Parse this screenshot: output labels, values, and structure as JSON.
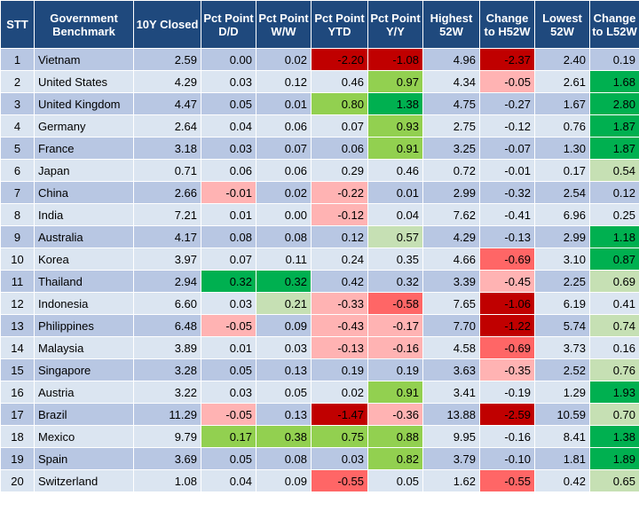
{
  "headers": [
    "STT",
    "Government Benchmark",
    "10Y Closed",
    "Pct Point D/D",
    "Pct Point W/W",
    "Pct Point YTD",
    "Pct Point Y/Y",
    "Highest 52W",
    "Change to H52W",
    "Lowest 52W",
    "Change to L52W"
  ],
  "rows": [
    {
      "stt": "1",
      "name": "Vietnam",
      "closed": "2.59",
      "dd": "0.00",
      "ww": "0.02",
      "ytd": "-2.20",
      "yy": "-1.08",
      "h52": "4.96",
      "ch52": "-2.37",
      "l52": "2.40",
      "cl52": "0.19"
    },
    {
      "stt": "2",
      "name": "United States",
      "closed": "4.29",
      "dd": "0.03",
      "ww": "0.12",
      "ytd": "0.46",
      "yy": "0.97",
      "h52": "4.34",
      "ch52": "-0.05",
      "l52": "2.61",
      "cl52": "1.68"
    },
    {
      "stt": "3",
      "name": "United Kingdom",
      "closed": "4.47",
      "dd": "0.05",
      "ww": "0.01",
      "ytd": "0.80",
      "yy": "1.38",
      "h52": "4.75",
      "ch52": "-0.27",
      "l52": "1.67",
      "cl52": "2.80"
    },
    {
      "stt": "4",
      "name": "Germany",
      "closed": "2.64",
      "dd": "0.04",
      "ww": "0.06",
      "ytd": "0.07",
      "yy": "0.93",
      "h52": "2.75",
      "ch52": "-0.12",
      "l52": "0.76",
      "cl52": "1.87"
    },
    {
      "stt": "5",
      "name": "France",
      "closed": "3.18",
      "dd": "0.03",
      "ww": "0.07",
      "ytd": "0.06",
      "yy": "0.91",
      "h52": "3.25",
      "ch52": "-0.07",
      "l52": "1.30",
      "cl52": "1.87"
    },
    {
      "stt": "6",
      "name": "Japan",
      "closed": "0.71",
      "dd": "0.06",
      "ww": "0.06",
      "ytd": "0.29",
      "yy": "0.46",
      "h52": "0.72",
      "ch52": "-0.01",
      "l52": "0.17",
      "cl52": "0.54"
    },
    {
      "stt": "7",
      "name": "China",
      "closed": "2.66",
      "dd": "-0.01",
      "ww": "0.02",
      "ytd": "-0.22",
      "yy": "0.01",
      "h52": "2.99",
      "ch52": "-0.32",
      "l52": "2.54",
      "cl52": "0.12"
    },
    {
      "stt": "8",
      "name": "India",
      "closed": "7.21",
      "dd": "0.01",
      "ww": "0.00",
      "ytd": "-0.12",
      "yy": "0.04",
      "h52": "7.62",
      "ch52": "-0.41",
      "l52": "6.96",
      "cl52": "0.25"
    },
    {
      "stt": "9",
      "name": "Australia",
      "closed": "4.17",
      "dd": "0.08",
      "ww": "0.08",
      "ytd": "0.12",
      "yy": "0.57",
      "h52": "4.29",
      "ch52": "-0.13",
      "l52": "2.99",
      "cl52": "1.18"
    },
    {
      "stt": "10",
      "name": "Korea",
      "closed": "3.97",
      "dd": "0.07",
      "ww": "0.11",
      "ytd": "0.24",
      "yy": "0.35",
      "h52": "4.66",
      "ch52": "-0.69",
      "l52": "3.10",
      "cl52": "0.87"
    },
    {
      "stt": "11",
      "name": "Thailand",
      "closed": "2.94",
      "dd": "0.32",
      "ww": "0.32",
      "ytd": "0.42",
      "yy": "0.32",
      "h52": "3.39",
      "ch52": "-0.45",
      "l52": "2.25",
      "cl52": "0.69"
    },
    {
      "stt": "12",
      "name": "Indonesia",
      "closed": "6.60",
      "dd": "0.03",
      "ww": "0.21",
      "ytd": "-0.33",
      "yy": "-0.58",
      "h52": "7.65",
      "ch52": "-1.06",
      "l52": "6.19",
      "cl52": "0.41"
    },
    {
      "stt": "13",
      "name": "Philippines",
      "closed": "6.48",
      "dd": "-0.05",
      "ww": "0.09",
      "ytd": "-0.43",
      "yy": "-0.17",
      "h52": "7.70",
      "ch52": "-1.22",
      "l52": "5.74",
      "cl52": "0.74"
    },
    {
      "stt": "14",
      "name": "Malaysia",
      "closed": "3.89",
      "dd": "0.01",
      "ww": "0.03",
      "ytd": "-0.13",
      "yy": "-0.16",
      "h52": "4.58",
      "ch52": "-0.69",
      "l52": "3.73",
      "cl52": "0.16"
    },
    {
      "stt": "15",
      "name": "Singapore",
      "closed": "3.28",
      "dd": "0.05",
      "ww": "0.13",
      "ytd": "0.19",
      "yy": "0.19",
      "h52": "3.63",
      "ch52": "-0.35",
      "l52": "2.52",
      "cl52": "0.76"
    },
    {
      "stt": "16",
      "name": "Austria",
      "closed": "3.22",
      "dd": "0.03",
      "ww": "0.05",
      "ytd": "0.02",
      "yy": "0.91",
      "h52": "3.41",
      "ch52": "-0.19",
      "l52": "1.29",
      "cl52": "1.93"
    },
    {
      "stt": "17",
      "name": "Brazil",
      "closed": "11.29",
      "dd": "-0.05",
      "ww": "0.13",
      "ytd": "-1.47",
      "yy": "-0.36",
      "h52": "13.88",
      "ch52": "-2.59",
      "l52": "10.59",
      "cl52": "0.70"
    },
    {
      "stt": "18",
      "name": "Mexico",
      "closed": "9.79",
      "dd": "0.17",
      "ww": "0.38",
      "ytd": "0.75",
      "yy": "0.88",
      "h52": "9.95",
      "ch52": "-0.16",
      "l52": "8.41",
      "cl52": "1.38"
    },
    {
      "stt": "19",
      "name": "Spain",
      "closed": "3.69",
      "dd": "0.05",
      "ww": "0.08",
      "ytd": "0.03",
      "yy": "0.82",
      "h52": "3.79",
      "ch52": "-0.10",
      "l52": "1.81",
      "cl52": "1.89"
    },
    {
      "stt": "20",
      "name": "Switzerland",
      "closed": "1.08",
      "dd": "0.04",
      "ww": "0.09",
      "ytd": "-0.55",
      "yy": "0.05",
      "h52": "1.62",
      "ch52": "-0.55",
      "l52": "0.42",
      "cl52": "0.65"
    }
  ],
  "highlights": {
    "1": {
      "ytd": "dr",
      "yy": "dr",
      "ch52": "dr"
    },
    "2": {
      "yy": "mg",
      "ch52": "lr",
      "cl52": "dg"
    },
    "3": {
      "ytd": "mg",
      "yy": "dg",
      "cl52": "dg"
    },
    "4": {
      "yy": "mg",
      "cl52": "dg"
    },
    "5": {
      "yy": "mg",
      "cl52": "dg"
    },
    "6": {
      "cl52": "lg"
    },
    "7": {
      "dd": "lr",
      "ytd": "lr"
    },
    "8": {
      "ytd": "lr"
    },
    "9": {
      "yy": "lg",
      "cl52": "dg"
    },
    "10": {
      "ch52": "mr",
      "cl52": "dg"
    },
    "11": {
      "dd": "dg",
      "ww": "dg",
      "ch52": "lr",
      "cl52": "lg"
    },
    "12": {
      "ww": "lg",
      "ytd": "lr",
      "yy": "mr",
      "ch52": "dr"
    },
    "13": {
      "dd": "lr",
      "ytd": "lr",
      "yy": "lr",
      "ch52": "dr",
      "cl52": "lg"
    },
    "14": {
      "ytd": "lr",
      "yy": "lr",
      "ch52": "mr"
    },
    "15": {
      "ch52": "lr",
      "cl52": "lg"
    },
    "16": {
      "yy": "mg",
      "cl52": "dg"
    },
    "17": {
      "dd": "lr",
      "ytd": "dr",
      "yy": "lr",
      "ch52": "dr",
      "cl52": "lg"
    },
    "18": {
      "dd": "mg",
      "ww": "mg",
      "ytd": "mg",
      "yy": "mg",
      "cl52": "dg"
    },
    "19": {
      "yy": "mg",
      "cl52": "dg"
    },
    "20": {
      "ytd": "mr",
      "ch52": "mr",
      "cl52": "lg"
    }
  },
  "colors": {
    "header_bg": "#1f497d",
    "row_odd": "#b8c7e3",
    "row_even": "#dbe5f1",
    "dark_green": "#00b050",
    "medium_green": "#92d050",
    "light_green": "#c6e0b4",
    "dark_red": "#c00000",
    "medium_red": "#ff6666",
    "light_red": "#ffb3b3"
  }
}
